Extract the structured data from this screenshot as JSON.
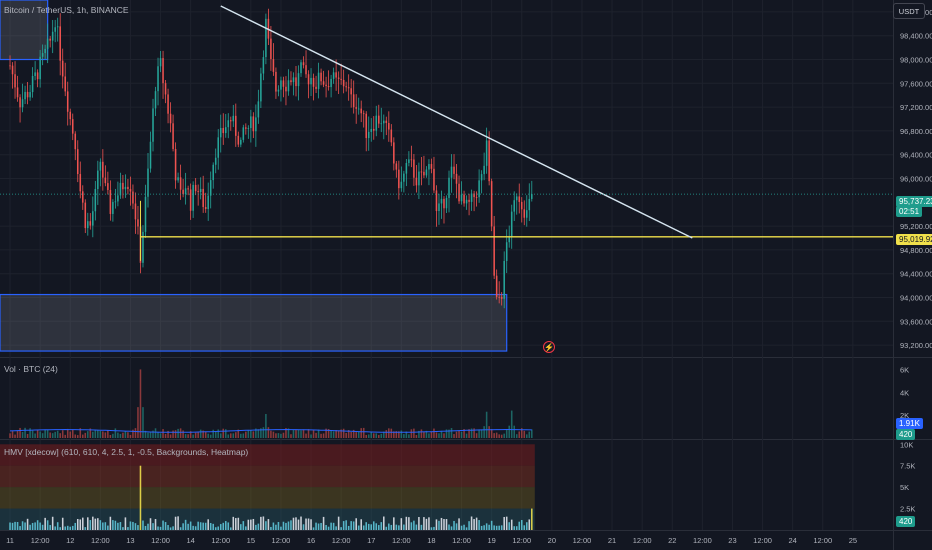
{
  "header": {
    "symbol_line": "Bitcoin / TetherUS, 1h, BINANCE",
    "currency": "USDT"
  },
  "price_tags": {
    "last_price": "95,737.23",
    "countdown": "02:51",
    "level": "95,019.92",
    "vol_value": "1.91K",
    "vol_count": "420",
    "hmv_count": "420"
  },
  "colors": {
    "up": "#26a69a",
    "down": "#ef5350",
    "trendline": "#d4e4ef",
    "level": "#f0e04b",
    "zone": "#2962ff",
    "vol_ma": "#2962ff",
    "last_price_bg": "#1e9c8c",
    "level_bg": "#f0e04b"
  },
  "volume_panel": {
    "label": "Vol · BTC (24)",
    "ticks": [
      "6K",
      "4K",
      "2K"
    ]
  },
  "hmv_panel": {
    "label": "HMV [xdecow] (610, 610, 4, 2.5, 1, -0.5, Backgrounds, Heatmap)",
    "ticks": [
      "10K",
      "7.5K",
      "5K",
      "2.5K"
    ]
  },
  "icons": {
    "alert": "lightning-icon"
  },
  "chart_data": {
    "type": "candlestick",
    "pair": "BTC/USDT",
    "interval": "1h",
    "exchange": "BINANCE",
    "y_ticks": [
      98800,
      98400,
      98000,
      97600,
      97200,
      96800,
      96400,
      96000,
      95200,
      94800,
      94400,
      94000,
      93600,
      93200
    ],
    "ylim": [
      93000,
      99000
    ],
    "x_ticks": [
      "11",
      "12:00",
      "12",
      "12:00",
      "13",
      "12:00",
      "14",
      "12:00",
      "15",
      "12:00",
      "16",
      "12:00",
      "17",
      "12:00",
      "18",
      "12:00",
      "19",
      "12:00",
      "20",
      "12:00",
      "21",
      "12:00",
      "22",
      "12:00",
      "23",
      "12:00",
      "24",
      "12:00",
      "25"
    ],
    "x_range_hours": [
      -4,
      352
    ],
    "last_close_hours": 208,
    "price_path": [
      [
        0,
        97900
      ],
      [
        4,
        97300
      ],
      [
        8,
        97500
      ],
      [
        12,
        97900
      ],
      [
        16,
        98300
      ],
      [
        18,
        98700
      ],
      [
        20,
        98100
      ],
      [
        24,
        97000
      ],
      [
        26,
        96600
      ],
      [
        28,
        95800
      ],
      [
        30,
        95300
      ],
      [
        32,
        95200
      ],
      [
        34,
        95700
      ],
      [
        36,
        96300
      ],
      [
        38,
        95800
      ],
      [
        40,
        95500
      ],
      [
        42,
        95700
      ],
      [
        44,
        95800
      ],
      [
        46,
        96000
      ],
      [
        48,
        95900
      ],
      [
        50,
        95400
      ],
      [
        52,
        94700
      ],
      [
        54,
        95600
      ],
      [
        56,
        96600
      ],
      [
        58,
        97600
      ],
      [
        60,
        97900
      ],
      [
        62,
        97400
      ],
      [
        64,
        96900
      ],
      [
        66,
        96100
      ],
      [
        68,
        95700
      ],
      [
        70,
        95900
      ],
      [
        72,
        95600
      ],
      [
        74,
        95900
      ],
      [
        76,
        95700
      ],
      [
        78,
        95500
      ],
      [
        80,
        96100
      ],
      [
        82,
        96500
      ],
      [
        84,
        96700
      ],
      [
        86,
        96900
      ],
      [
        88,
        97000
      ],
      [
        90,
        96800
      ],
      [
        92,
        96600
      ],
      [
        94,
        96800
      ],
      [
        96,
        96900
      ],
      [
        98,
        97000
      ],
      [
        100,
        97800
      ],
      [
        102,
        98600
      ],
      [
        104,
        97900
      ],
      [
        106,
        97500
      ],
      [
        108,
        97700
      ],
      [
        110,
        97600
      ],
      [
        112,
        97700
      ],
      [
        114,
        97600
      ],
      [
        116,
        97800
      ],
      [
        118,
        97700
      ],
      [
        120,
        97700
      ],
      [
        122,
        97600
      ],
      [
        124,
        97700
      ],
      [
        126,
        97600
      ],
      [
        128,
        97700
      ],
      [
        130,
        97600
      ],
      [
        132,
        97600
      ],
      [
        134,
        97600
      ],
      [
        136,
        97300
      ],
      [
        138,
        97300
      ],
      [
        140,
        97100
      ],
      [
        142,
        96800
      ],
      [
        144,
        96900
      ],
      [
        146,
        97000
      ],
      [
        148,
        97000
      ],
      [
        150,
        96800
      ],
      [
        152,
        96600
      ],
      [
        154,
        96000
      ],
      [
        156,
        95900
      ],
      [
        158,
        96200
      ],
      [
        160,
        96200
      ],
      [
        162,
        96000
      ],
      [
        164,
        96000
      ],
      [
        166,
        96100
      ],
      [
        168,
        96300
      ],
      [
        170,
        95400
      ],
      [
        172,
        95500
      ],
      [
        174,
        95800
      ],
      [
        176,
        96100
      ],
      [
        178,
        95900
      ],
      [
        180,
        95600
      ],
      [
        182,
        95500
      ],
      [
        184,
        95600
      ],
      [
        186,
        95800
      ],
      [
        188,
        96000
      ],
      [
        190,
        96500
      ],
      [
        192,
        95200
      ],
      [
        193,
        94300
      ],
      [
        194,
        93900
      ],
      [
        196,
        94100
      ],
      [
        198,
        94900
      ],
      [
        200,
        95300
      ],
      [
        202,
        95800
      ],
      [
        204,
        95600
      ],
      [
        206,
        95400
      ],
      [
        208,
        95737
      ]
    ],
    "volume_spikes": [
      [
        52,
        6000
      ],
      [
        102,
        2100
      ],
      [
        190,
        2300
      ],
      [
        200,
        2400
      ]
    ],
    "hmv_spikes": [
      [
        52,
        7500
      ],
      [
        208,
        2500
      ]
    ],
    "trendline": [
      [
        84,
        98900
      ],
      [
        272,
        95000
      ]
    ],
    "horizontal_level": 95020,
    "zones": [
      {
        "x": [
          -4,
          15
        ],
        "y": [
          98000,
          99000
        ]
      },
      {
        "x": [
          -4,
          198
        ],
        "y": [
          93100,
          94050
        ]
      }
    ]
  }
}
